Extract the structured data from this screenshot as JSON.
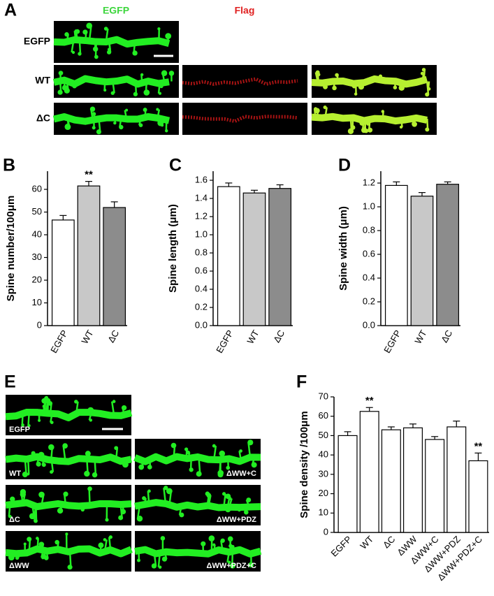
{
  "figure": {
    "panel_labels": [
      "A",
      "B",
      "C",
      "D",
      "E",
      "F"
    ],
    "a_columns": [
      "EGFP",
      "Flag"
    ],
    "a_rows": [
      "EGFP",
      "WT",
      "ΔC"
    ],
    "e_labels": [
      "EGFP",
      "WT",
      "ΔWW+C",
      "ΔC",
      "ΔWW+PDZ",
      "ΔWW",
      "ΔWW+PDZ+C"
    ]
  },
  "chart_data": [
    {
      "type": "bar",
      "y_label": "Spine number/100μm",
      "categories": [
        "EGFP",
        "WT",
        "ΔC"
      ],
      "values": [
        46.5,
        61.5,
        52
      ],
      "errors": [
        2,
        2,
        2.5
      ],
      "colors": [
        "#ffffff",
        "#c8c8c8",
        "#8c8c8c"
      ],
      "ylim": [
        0,
        68
      ],
      "yticks": [
        0,
        10,
        20,
        30,
        40,
        50,
        60
      ],
      "annotations": [
        {
          "text": "**",
          "x": "WT"
        }
      ]
    },
    {
      "type": "bar",
      "y_label": "Spine length (μm)",
      "categories": [
        "EGFP",
        "WT",
        "ΔC"
      ],
      "values": [
        1.53,
        1.46,
        1.51
      ],
      "errors": [
        0.04,
        0.03,
        0.04
      ],
      "colors": [
        "#ffffff",
        "#c8c8c8",
        "#8c8c8c"
      ],
      "ylim": [
        0,
        1.7
      ],
      "yticks": [
        {
          "value": 0,
          "label": "0.0"
        },
        {
          "value": 0.2,
          "label": "0.2"
        },
        {
          "value": 0.4,
          "label": "0.4"
        },
        {
          "value": 0.6,
          "label": "0.6"
        },
        {
          "value": 0.8,
          "label": "0.8"
        },
        {
          "value": 1,
          "label": "1.0"
        },
        {
          "value": 1.2,
          "label": "1.2"
        },
        {
          "value": 1.4,
          "label": "1.4"
        },
        {
          "value": 1.6,
          "label": "1.6"
        }
      ]
    },
    {
      "type": "bar",
      "y_label": "Spine width (μm)",
      "categories": [
        "EGFP",
        "WT",
        "ΔC"
      ],
      "values": [
        1.18,
        1.09,
        1.19
      ],
      "errors": [
        0.03,
        0.03,
        0.02
      ],
      "colors": [
        "#ffffff",
        "#c8c8c8",
        "#8c8c8c"
      ],
      "ylim": [
        0,
        1.3
      ],
      "yticks": [
        {
          "value": 0,
          "label": "0.0"
        },
        {
          "value": 0.2,
          "label": "0.2"
        },
        {
          "value": 0.4,
          "label": "0.4"
        },
        {
          "value": 0.6,
          "label": "0.6"
        },
        {
          "value": 0.8,
          "label": "0.8"
        },
        {
          "value": 1,
          "label": "1.0"
        },
        {
          "value": 1.2,
          "label": "1.2"
        }
      ]
    },
    {
      "type": "bar",
      "y_label": "Spine density /100μm",
      "categories": [
        "EGFP",
        "WT",
        "ΔC",
        "ΔWW",
        "ΔWW+C",
        "ΔWW+PDZ",
        "ΔWW+PDZ+C"
      ],
      "values": [
        50,
        62.5,
        53,
        54,
        48,
        54.5,
        37
      ],
      "errors": [
        2,
        2,
        1.5,
        2,
        1.5,
        3,
        4
      ],
      "color": "#ffffff",
      "ylim": [
        0,
        70
      ],
      "yticks": [
        0,
        10,
        20,
        30,
        40,
        50,
        60,
        70
      ],
      "annotations": [
        {
          "text": "**",
          "x": "WT"
        },
        {
          "text": "**",
          "x": "ΔWW+PDZ+C"
        }
      ]
    }
  ]
}
